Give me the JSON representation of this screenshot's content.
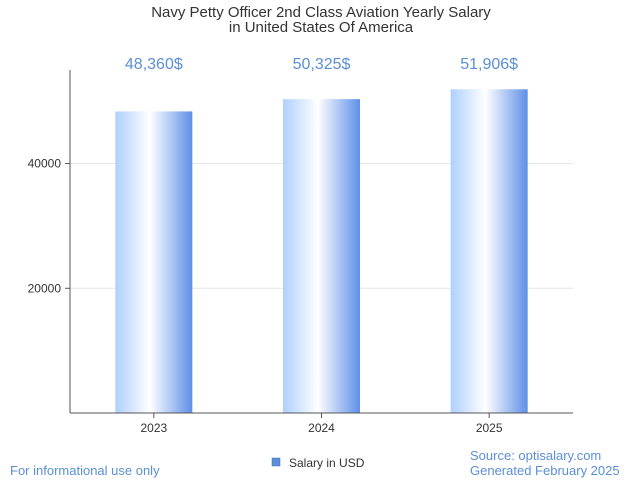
{
  "chart_data": {
    "type": "bar",
    "title_lines": [
      "Navy Petty Officer 2nd Class Aviation Yearly Salary",
      "in United States Of America"
    ],
    "categories": [
      "2023",
      "2024",
      "2025"
    ],
    "series": [
      {
        "name": "Salary in USD",
        "values": [
          48360,
          50325,
          51906
        ]
      }
    ],
    "value_labels": [
      "48,360$",
      "50,325$",
      "51,906$"
    ],
    "y_ticks": [
      20000,
      40000
    ],
    "ylim": [
      0,
      55000
    ],
    "grid": true,
    "legend_position": "bottom-center",
    "colors": {
      "bar_light": "#ffffff",
      "bar_mid": "#aed0ff",
      "bar_dark": "#5e8fe8",
      "label": "#5b8fd6",
      "legend_swatch": "#5b8fd6"
    }
  },
  "footer": {
    "left": "For informational use only",
    "source": "Source: optisalary.com",
    "generated": "Generated February 2025"
  }
}
